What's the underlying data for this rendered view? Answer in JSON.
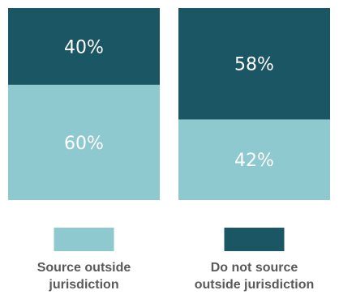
{
  "chart_data": {
    "type": "bar",
    "stacked": true,
    "normalized": true,
    "unit": "%",
    "categories": [
      "Source outside jurisdiction",
      "Do not source outside jurisdiction"
    ],
    "category_label_lines": [
      [
        "Source outside",
        "jurisdiction"
      ],
      [
        "Do not source",
        "outside jurisdiction"
      ]
    ],
    "series": [
      {
        "color": "#8ec9d0",
        "values": [
          60,
          42
        ]
      },
      {
        "color": "#1b5664",
        "values": [
          40,
          58
        ]
      }
    ],
    "data_labels": [
      [
        "60%",
        "42%"
      ],
      [
        "40%",
        "58%"
      ]
    ],
    "ylim": [
      0,
      100
    ],
    "grid": false,
    "legend": "none"
  },
  "legend_swatches": [
    {
      "color": "#8ec9d0"
    },
    {
      "color": "#1b5664"
    }
  ]
}
